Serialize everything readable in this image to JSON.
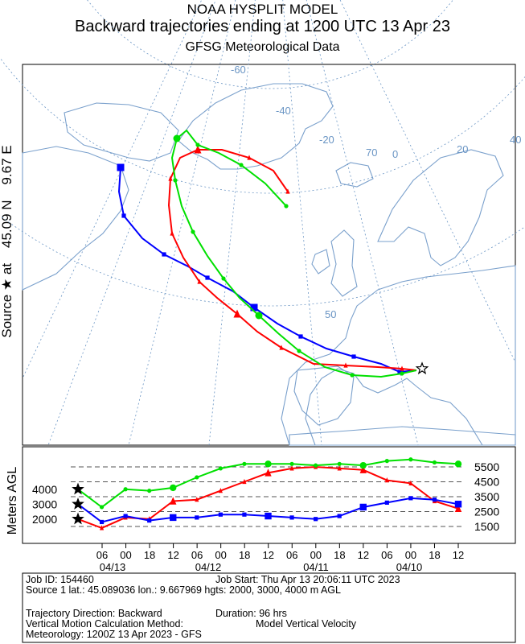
{
  "header": {
    "model": "NOAA HYSPLIT MODEL",
    "title": "Backward trajectories ending at 1200 UTC 13 Apr 23",
    "subtitle": "GFSG Meteorological Data"
  },
  "source_label": {
    "prefix": "Source ★ at",
    "lat": "45.09 N",
    "lon": "9.67 E"
  },
  "map": {
    "lat_labels": [
      "50",
      "70"
    ],
    "lon_labels": [
      "-60",
      "-40",
      "-20",
      "0",
      "20",
      "40"
    ],
    "colors": {
      "land": "#7aa0cc",
      "grid": "#6a95c4",
      "background": "#ffffff"
    }
  },
  "chart_data": {
    "type": "line",
    "ylabel": "Meters AGL",
    "yticks_left": [
      "4000",
      "3000",
      "2000"
    ],
    "yticks_right": [
      "5500",
      "4500",
      "3500",
      "2500",
      "1500"
    ],
    "x_hour_ticks": [
      "06",
      "00",
      "18",
      "12",
      "06",
      "00",
      "18",
      "12",
      "06",
      "00",
      "18",
      "12",
      "06",
      "00",
      "18",
      "12"
    ],
    "x_date_ticks": [
      "04/13",
      "04/12",
      "04/11",
      "04/10"
    ],
    "hours_back": [
      0,
      6,
      12,
      18,
      24,
      30,
      36,
      42,
      48,
      54,
      60,
      66,
      72,
      78,
      84,
      90,
      96
    ],
    "series": [
      {
        "color": "#ff0000",
        "start_height": 2000,
        "values": [
          2000,
          1400,
          2100,
          2000,
          3200,
          3300,
          3900,
          4500,
          5100,
          5400,
          5500,
          5400,
          5300,
          4600,
          4400,
          3200,
          2700
        ]
      },
      {
        "color": "#0000ff",
        "start_height": 3000,
        "values": [
          3000,
          1800,
          2200,
          1900,
          2100,
          2100,
          2300,
          2300,
          2200,
          2100,
          2000,
          2200,
          2800,
          3100,
          3400,
          3300,
          3000
        ]
      },
      {
        "color": "#00e000",
        "start_height": 4000,
        "values": [
          4000,
          2800,
          4000,
          3900,
          4100,
          4800,
          5400,
          5700,
          5700,
          5700,
          5600,
          5700,
          5600,
          5900,
          6000,
          5800,
          5700
        ]
      }
    ]
  },
  "info": {
    "job_id": "Job ID: 154460",
    "job_start": "Job Start: Thu Apr 13 20:06:11 UTC 2023",
    "source_line": "Source 1 lat.: 45.089036   lon.: 9.667969   hgts: 2000, 3000, 4000 m AGL",
    "direction": "Trajectory Direction: Backward",
    "duration": "Duration: 96 hrs",
    "vertical_method_label": "Vertical Motion Calculation Method:",
    "vertical_method_value": "Model Vertical Velocity",
    "meteorology": "Meteorology: 1200Z 13 Apr 2023 - GFS"
  }
}
